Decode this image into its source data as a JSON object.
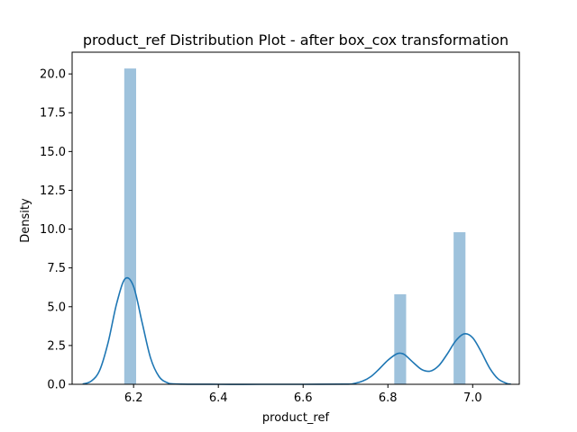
{
  "chart_data": {
    "type": "bar",
    "title": "product_ref Distribution Plot - after box_cox transformation",
    "xlabel": "product_ref",
    "ylabel": "Density",
    "xlim": [
      6.055,
      7.11
    ],
    "ylim": [
      0,
      21.4
    ],
    "x_ticks": [
      6.2,
      6.4,
      6.6,
      6.8,
      7.0
    ],
    "x_tick_labels": [
      "6.2",
      "6.4",
      "6.6",
      "6.8",
      "7.0"
    ],
    "y_ticks": [
      0,
      2.5,
      5,
      7.5,
      10,
      12.5,
      15,
      17.5,
      20
    ],
    "y_tick_labels": [
      "0.0",
      "2.5",
      "5.0",
      "7.5",
      "10.0",
      "12.5",
      "15.0",
      "17.5",
      "20.0"
    ],
    "histogram": {
      "bars": [
        {
          "x0": 6.178,
          "x1": 6.206,
          "density": 20.35
        },
        {
          "x0": 6.815,
          "x1": 6.843,
          "density": 5.8
        },
        {
          "x0": 6.955,
          "x1": 6.983,
          "density": 9.8
        }
      ],
      "color": "#9ec2dc"
    },
    "kde": {
      "color": "#1f77b4",
      "x": [
        6.08,
        6.1,
        6.12,
        6.14,
        6.16,
        6.18,
        6.2,
        6.22,
        6.24,
        6.26,
        6.28,
        6.3,
        6.4,
        6.5,
        6.6,
        6.7,
        6.72,
        6.74,
        6.76,
        6.78,
        6.8,
        6.82,
        6.83,
        6.84,
        6.86,
        6.88,
        6.9,
        6.92,
        6.94,
        6.96,
        6.98,
        7.0,
        7.02,
        7.04,
        7.06,
        7.08,
        7.09
      ],
      "y": [
        0.02,
        0.2,
        0.9,
        2.7,
        5.2,
        6.8,
        6.3,
        4.0,
        1.7,
        0.5,
        0.1,
        0.02,
        0,
        0,
        0,
        0.01,
        0.05,
        0.2,
        0.5,
        1.0,
        1.55,
        1.95,
        2.0,
        1.9,
        1.4,
        0.95,
        0.85,
        1.2,
        1.95,
        2.8,
        3.25,
        3.0,
        2.1,
        1.05,
        0.35,
        0.06,
        0.02
      ]
    }
  }
}
